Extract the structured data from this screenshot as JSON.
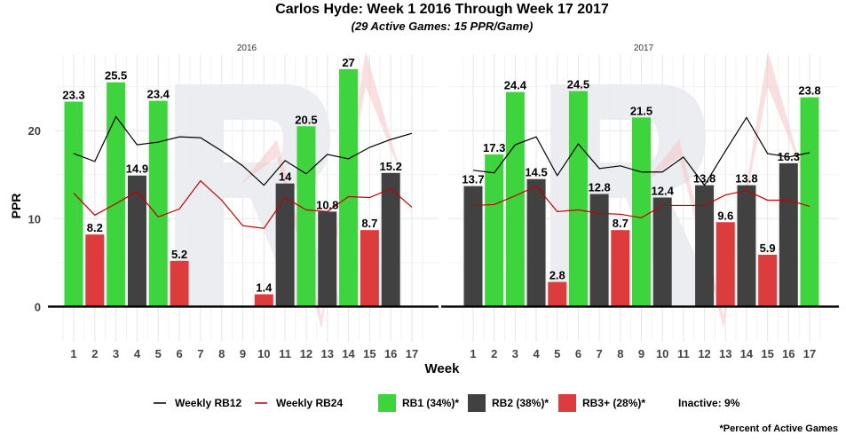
{
  "chart_data": {
    "type": "bar",
    "title": "Carlos Hyde: Week 1 2016 Through Week 17 2017",
    "subtitle": "(29 Active Games: 15 PPR/Game)",
    "xlabel": "Week",
    "ylabel": "PPR",
    "ylim": [
      -4,
      28.6
    ],
    "yticks": [
      0,
      10,
      20
    ],
    "grid": true,
    "legend_position": "bottom",
    "categories": [
      "1",
      "2",
      "3",
      "4",
      "5",
      "6",
      "7",
      "8",
      "9",
      "10",
      "11",
      "12",
      "13",
      "14",
      "15",
      "16",
      "17"
    ],
    "colors": {
      "RB1": "#3ed43e",
      "RB2": "#414141",
      "RB3+": "#dc3c3c",
      "RB12_line": "#000000",
      "RB24_line": "#c00000"
    },
    "legend": {
      "rb12": "Weekly RB12",
      "rb24": "Weekly RB24",
      "rb1": "RB1 (34%)*",
      "rb2": "RB2 (38%)*",
      "rb3": "RB3+ (28%)*",
      "inactive": "Inactive: 9%",
      "footnote": "*Percent of Active Games"
    },
    "panels": [
      {
        "label": "2016",
        "bars": [
          {
            "week": 1,
            "value": 23.3,
            "tier": "RB1"
          },
          {
            "week": 2,
            "value": 8.2,
            "tier": "RB3+"
          },
          {
            "week": 3,
            "value": 25.5,
            "tier": "RB1"
          },
          {
            "week": 4,
            "value": 14.9,
            "tier": "RB2"
          },
          {
            "week": 5,
            "value": 23.4,
            "tier": "RB1"
          },
          {
            "week": 6,
            "value": 5.2,
            "tier": "RB3+"
          },
          {
            "week": 10,
            "value": 1.4,
            "tier": "RB3+"
          },
          {
            "week": 11,
            "value": 14,
            "tier": "RB2"
          },
          {
            "week": 12,
            "value": 20.5,
            "tier": "RB1"
          },
          {
            "week": 13,
            "value": 10.8,
            "tier": "RB2"
          },
          {
            "week": 14,
            "value": 27,
            "tier": "RB1"
          },
          {
            "week": 15,
            "value": 8.7,
            "tier": "RB3+"
          },
          {
            "week": 16,
            "value": 15.2,
            "tier": "RB2"
          }
        ],
        "rb12": [
          17.4,
          16.5,
          21.6,
          18.4,
          18.7,
          19.3,
          19.2,
          17.7,
          16.0,
          13.8,
          16.6,
          15.1,
          17.3,
          16.8,
          18.1,
          19.0,
          19.7
        ],
        "rb24": [
          12.9,
          10.4,
          11.7,
          13.1,
          10.2,
          11.1,
          14.3,
          12.1,
          9.2,
          8.9,
          12.4,
          11.0,
          10.8,
          12.5,
          12.4,
          13.4,
          11.3
        ]
      },
      {
        "label": "2017",
        "bars": [
          {
            "week": 1,
            "value": 13.7,
            "tier": "RB2"
          },
          {
            "week": 2,
            "value": 17.3,
            "tier": "RB1"
          },
          {
            "week": 3,
            "value": 24.4,
            "tier": "RB1"
          },
          {
            "week": 4,
            "value": 14.5,
            "tier": "RB2"
          },
          {
            "week": 5,
            "value": 2.8,
            "tier": "RB3+"
          },
          {
            "week": 6,
            "value": 24.5,
            "tier": "RB1"
          },
          {
            "week": 7,
            "value": 12.8,
            "tier": "RB2"
          },
          {
            "week": 8,
            "value": 8.7,
            "tier": "RB3+"
          },
          {
            "week": 9,
            "value": 21.5,
            "tier": "RB1"
          },
          {
            "week": 10,
            "value": 12.4,
            "tier": "RB2"
          },
          {
            "week": 12,
            "value": 13.8,
            "tier": "RB2"
          },
          {
            "week": 13,
            "value": 9.6,
            "tier": "RB3+"
          },
          {
            "week": 14,
            "value": 13.8,
            "tier": "RB2"
          },
          {
            "week": 15,
            "value": 5.9,
            "tier": "RB3+"
          },
          {
            "week": 16,
            "value": 16.3,
            "tier": "RB2"
          },
          {
            "week": 17,
            "value": 23.8,
            "tier": "RB1"
          }
        ],
        "rb12": [
          15.5,
          15.2,
          18.4,
          19.3,
          14.9,
          18.5,
          15.7,
          16.0,
          15.3,
          15.3,
          17.0,
          13.8,
          17.7,
          21.5,
          17.4,
          17.0,
          17.5
        ],
        "rb24": [
          11.5,
          11.6,
          12.6,
          13.7,
          10.8,
          11.0,
          10.6,
          10.5,
          10.1,
          11.5,
          11.5,
          11.5,
          12.7,
          13.2,
          12.1,
          12.1,
          11.4
        ]
      }
    ]
  }
}
